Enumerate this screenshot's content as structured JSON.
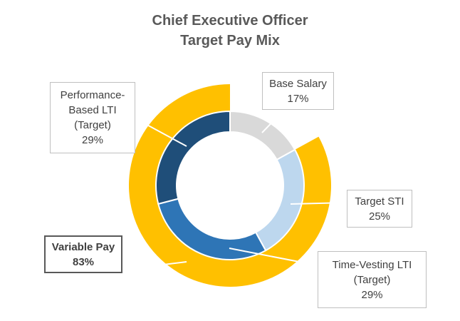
{
  "chart_data": {
    "type": "doughnut",
    "title": "Chief Executive Officer",
    "subtitle": "Target Pay Mix",
    "inner_ring": [
      {
        "name": "Base Salary",
        "value": 17,
        "color": "#d9d9d9"
      },
      {
        "name": "Target STI",
        "value": 25,
        "color": "#bdd7ee"
      },
      {
        "name": "Time-Vesting LTI (Target)",
        "value": 29,
        "color": "#2e75b6"
      },
      {
        "name": "Performance-Based LTI (Target)",
        "value": 29,
        "color": "#1f4e79"
      }
    ],
    "outer_ring": [
      {
        "name": "Base Salary",
        "value": 17,
        "color": "#ffffff"
      },
      {
        "name": "Variable Pay",
        "value": 83,
        "color": "#ffc000"
      }
    ],
    "labels": {
      "base_salary": {
        "line1": "Base Salary",
        "pct": "17%"
      },
      "target_sti": {
        "line1": "Target STI",
        "pct": "25%"
      },
      "time_vesting": {
        "line1": "Time-Vesting LTI",
        "line2": "(Target)",
        "pct": "29%"
      },
      "performance": {
        "line1": "Performance-",
        "line2": "Based LTI",
        "line3": "(Target)",
        "pct": "29%"
      },
      "variable_pay": {
        "line1": "Variable Pay",
        "pct": "83%"
      }
    }
  }
}
